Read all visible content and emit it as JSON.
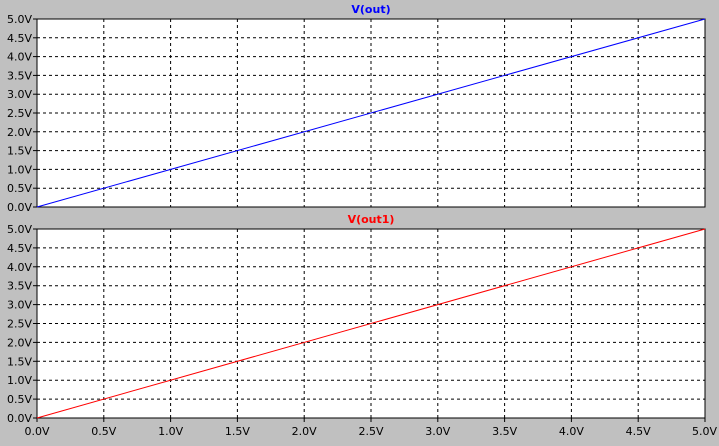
{
  "chart_data": [
    {
      "type": "line",
      "title": "V(out)",
      "title_color": "#0000ff",
      "series": [
        {
          "name": "V(out)",
          "color": "#0000ff",
          "x": [
            0,
            5
          ],
          "y": [
            0,
            5
          ]
        }
      ],
      "xlim": [
        0,
        5
      ],
      "ylim": [
        0,
        5
      ],
      "y_ticks": [
        "0.0V",
        "0.5V",
        "1.0V",
        "1.5V",
        "2.0V",
        "2.5V",
        "3.0V",
        "3.5V",
        "4.0V",
        "4.5V",
        "5.0V"
      ],
      "grid": true
    },
    {
      "type": "line",
      "title": "V(out1)",
      "title_color": "#ff0000",
      "series": [
        {
          "name": "V(out1)",
          "color": "#ff0000",
          "x": [
            0,
            5
          ],
          "y": [
            0,
            5
          ]
        }
      ],
      "xlim": [
        0,
        5
      ],
      "ylim": [
        0,
        5
      ],
      "x_ticks": [
        "0.0V",
        "0.5V",
        "1.0V",
        "1.5V",
        "2.0V",
        "2.5V",
        "3.0V",
        "3.5V",
        "4.0V",
        "4.5V",
        "5.0V"
      ],
      "y_ticks": [
        "0.0V",
        "0.5V",
        "1.0V",
        "1.5V",
        "2.0V",
        "2.5V",
        "3.0V",
        "3.5V",
        "4.0V",
        "4.5V",
        "5.0V"
      ],
      "grid": true
    }
  ],
  "colors": {
    "background": "#c0c0c0",
    "plot_background": "#ffffff",
    "grid": "#000000",
    "frame": "#000000"
  }
}
